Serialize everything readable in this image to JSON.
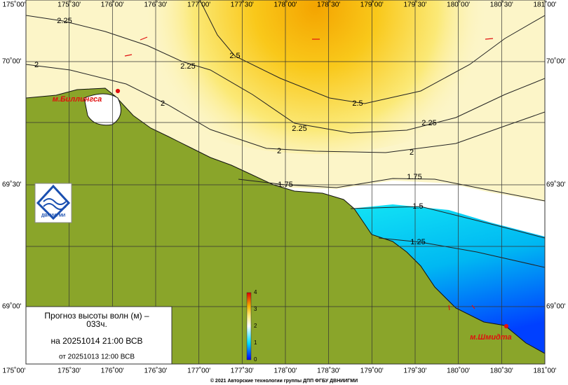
{
  "map": {
    "lon_labels": [
      "175˚00'",
      "175˚30'",
      "176˚00'",
      "176˚30'",
      "177˚00'",
      "177˚30'",
      "178˚00'",
      "178˚30'",
      "179˚00'",
      "179˚30'",
      "180˚00'",
      "180˚30'",
      "181˚00'"
    ],
    "lat_labels": [
      "70˚00'",
      "69˚30'",
      "69˚00'"
    ],
    "contour_labels": [
      "2.25",
      "2.5",
      "2.25",
      "2",
      "2",
      "2.5",
      "2.25",
      "2.25",
      "2",
      "2",
      "1.75",
      "1.75",
      "1.5",
      "1.25"
    ],
    "places": [
      "м.Биллингса",
      "м.Шмидта"
    ]
  },
  "colorbar": {
    "ticks": [
      "0",
      "1",
      "2",
      "3",
      "4"
    ]
  },
  "info": {
    "line1": "Прогноз высоты волн (м) –",
    "line2": "033ч.",
    "line3": "на 20251014 21:00 ВСВ",
    "line4": "от 20251013 12:00 ВСВ"
  },
  "logo": "ДВНИИГМИ",
  "footer": "© 2021 Авторские технологии группы ДПП ФГБУ ДВНИИГМИ"
}
